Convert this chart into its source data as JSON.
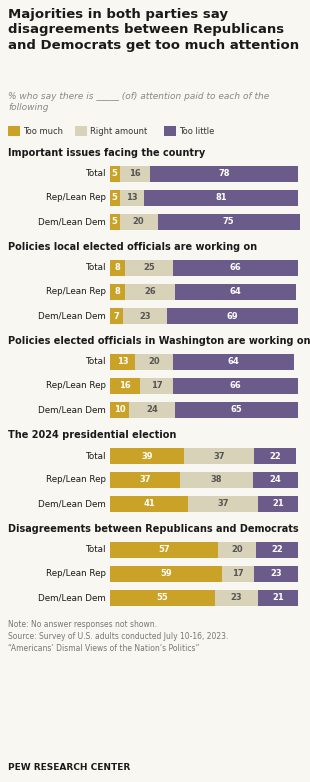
{
  "title": "Majorities in both parties say\ndisagreements between Republicans\nand Democrats get too much attention",
  "subtitle": "% who say there is _____ (of) attention paid to each of the\nfollowing",
  "legend": [
    "Too much",
    "Right amount",
    "Too little"
  ],
  "colors": [
    "#C9A227",
    "#D8D3B8",
    "#6B5B8A"
  ],
  "sections": [
    {
      "title": "Important issues facing the country",
      "rows": [
        {
          "label": "Total",
          "values": [
            5,
            16,
            78
          ]
        },
        {
          "label": "Rep/Lean Rep",
          "values": [
            5,
            13,
            81
          ]
        },
        {
          "label": "Dem/Lean Dem",
          "values": [
            5,
            20,
            75
          ]
        }
      ]
    },
    {
      "title": "Policies local elected officials are working on",
      "rows": [
        {
          "label": "Total",
          "values": [
            8,
            25,
            66
          ]
        },
        {
          "label": "Rep/Lean Rep",
          "values": [
            8,
            26,
            64
          ]
        },
        {
          "label": "Dem/Lean Dem",
          "values": [
            7,
            23,
            69
          ]
        }
      ]
    },
    {
      "title": "Policies elected officials in Washington are working on",
      "rows": [
        {
          "label": "Total",
          "values": [
            13,
            20,
            64
          ]
        },
        {
          "label": "Rep/Lean Rep",
          "values": [
            16,
            17,
            66
          ]
        },
        {
          "label": "Dem/Lean Dem",
          "values": [
            10,
            24,
            65
          ]
        }
      ]
    },
    {
      "title": "The 2024 presidential election",
      "rows": [
        {
          "label": "Total",
          "values": [
            39,
            37,
            22
          ]
        },
        {
          "label": "Rep/Lean Rep",
          "values": [
            37,
            38,
            24
          ]
        },
        {
          "label": "Dem/Lean Dem",
          "values": [
            41,
            37,
            21
          ]
        }
      ]
    },
    {
      "title": "Disagreements between Republicans and Democrats",
      "rows": [
        {
          "label": "Total",
          "values": [
            57,
            20,
            22
          ]
        },
        {
          "label": "Rep/Lean Rep",
          "values": [
            59,
            17,
            23
          ]
        },
        {
          "label": "Dem/Lean Dem",
          "values": [
            55,
            23,
            21
          ]
        }
      ]
    }
  ],
  "note": "Note: No answer responses not shown.\nSource: Survey of U.S. adults conducted July 10-16, 2023.\n“Americans’ Dismal Views of the Nation’s Politics”",
  "footer": "PEW RESEARCH CENTER",
  "background_color": "#f9f7f1"
}
